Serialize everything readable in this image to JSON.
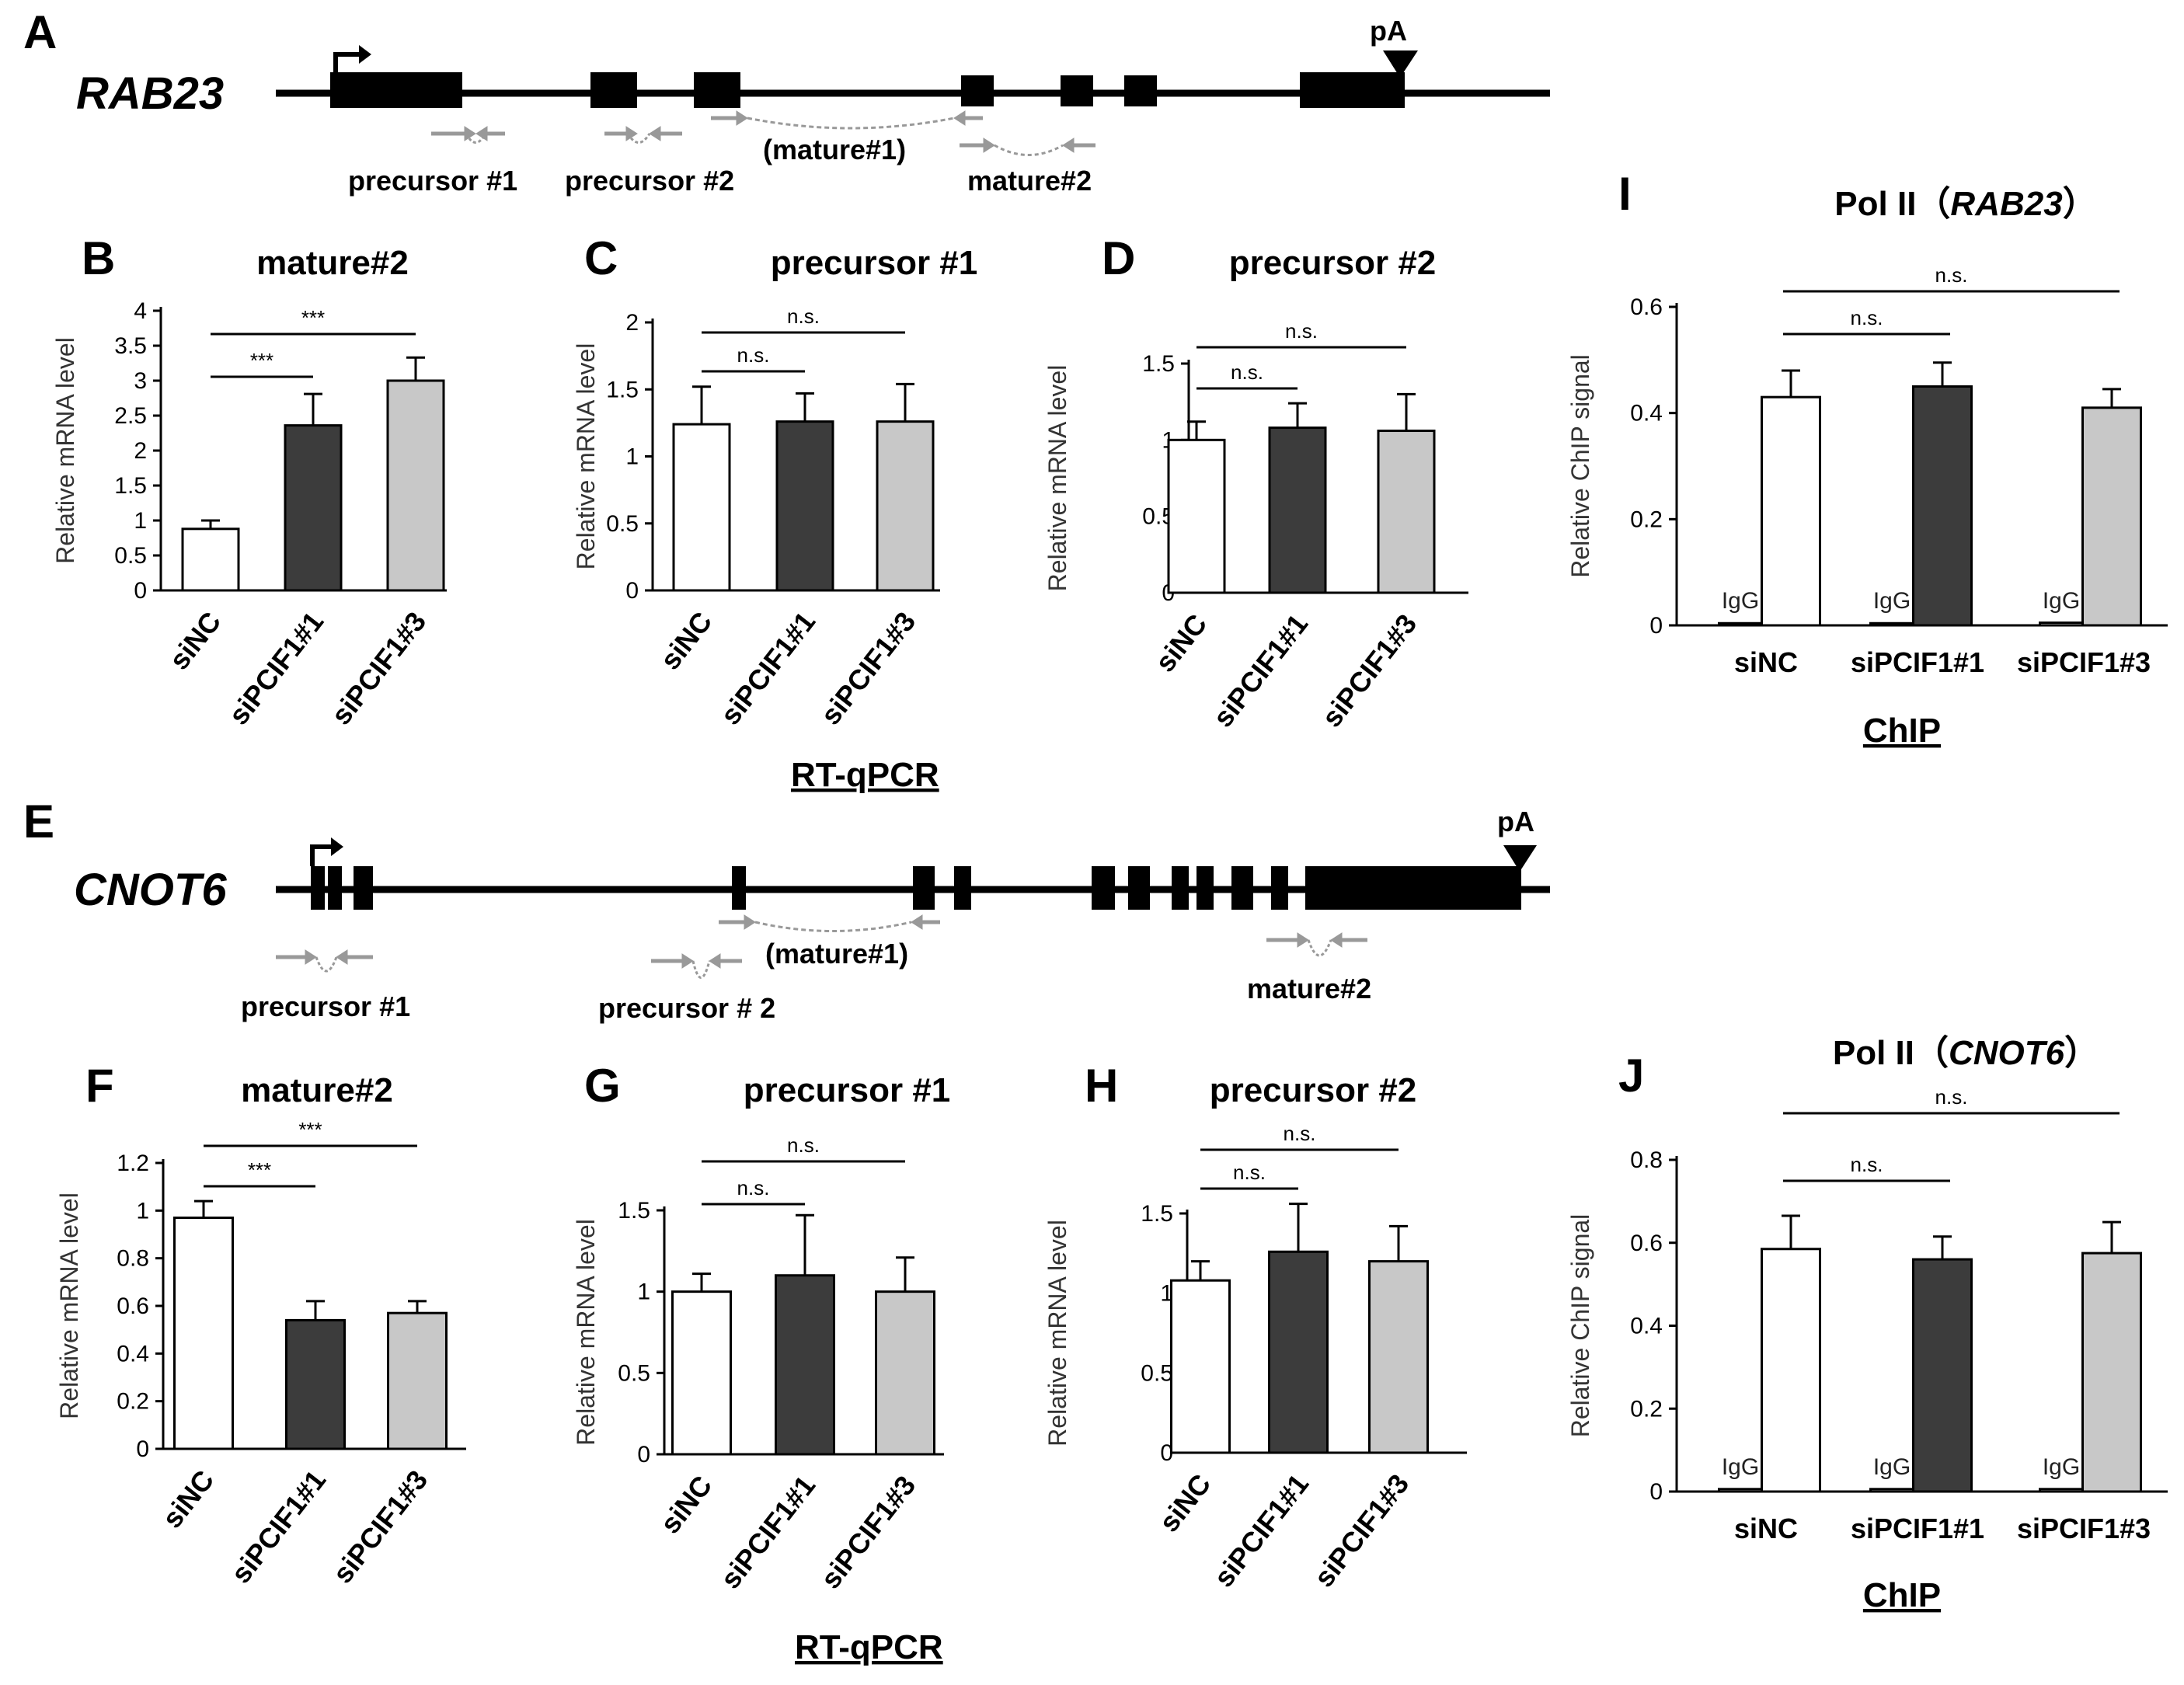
{
  "gene_A": {
    "panel": "A",
    "name": "RAB23",
    "pa": "pA",
    "primers": {
      "p1": "precursor #1",
      "p2": "precursor #2",
      "m1": "(mature#1)",
      "m2": "mature#2"
    }
  },
  "gene_E": {
    "panel": "E",
    "name": "CNOT6",
    "pa": "pA",
    "primers": {
      "p1": "precursor #1",
      "p2": "precursor # 2",
      "m1": "(mature#1)",
      "m2": "mature#2"
    }
  },
  "rtqpcr_label": "RT-qPCR",
  "chip_label": "ChIP",
  "colors": {
    "siNC": "#ffffff",
    "siPCIF1_1": "#3c3c3c",
    "siPCIF1_3": "#c8c8c8"
  },
  "chart_data": [
    {
      "id": "B",
      "panel": "B",
      "type": "bar",
      "title": "mature#2",
      "ylabel": "Relative mRNA level",
      "ylim": [
        0,
        4
      ],
      "ticks": [
        "0",
        "0.5",
        "1",
        "1.5",
        "2",
        "2.5",
        "3",
        "3.5",
        "4"
      ],
      "categories": [
        "siNC",
        "siPCIF1#1",
        "siPCIF1#3"
      ],
      "values": [
        0.88,
        2.36,
        3.0
      ],
      "errors": [
        0.12,
        0.45,
        0.33
      ],
      "significance": [
        {
          "from": 0,
          "to": 1,
          "label": "***"
        },
        {
          "from": 0,
          "to": 2,
          "label": "***"
        }
      ]
    },
    {
      "id": "C",
      "panel": "C",
      "type": "bar",
      "title": "precursor #1",
      "ylabel": "Relative mRNA level",
      "ylim": [
        0,
        2
      ],
      "ticks": [
        "0",
        "0.5",
        "1",
        "1.5",
        "2"
      ],
      "categories": [
        "siNC",
        "siPCIF1#1",
        "siPCIF1#3"
      ],
      "values": [
        1.24,
        1.26,
        1.26
      ],
      "errors": [
        0.28,
        0.21,
        0.28
      ],
      "significance": [
        {
          "from": 0,
          "to": 1,
          "label": "n.s."
        },
        {
          "from": 0,
          "to": 2,
          "label": "n.s."
        }
      ]
    },
    {
      "id": "D",
      "panel": "D",
      "type": "bar",
      "title": "precursor #2",
      "ylabel": "Relative mRNA level",
      "ylim": [
        0,
        1.5
      ],
      "ticks": [
        "0",
        "0.5",
        "1",
        "1.5"
      ],
      "categories": [
        "siNC",
        "siPCIF1#1",
        "siPCIF1#3"
      ],
      "values": [
        1.0,
        1.08,
        1.06
      ],
      "errors": [
        0.12,
        0.16,
        0.24
      ],
      "significance": [
        {
          "from": 0,
          "to": 1,
          "label": "n.s."
        },
        {
          "from": 0,
          "to": 2,
          "label": "n.s."
        }
      ]
    },
    {
      "id": "F",
      "panel": "F",
      "type": "bar",
      "title": "mature#2",
      "ylabel": "Relative mRNA level",
      "ylim": [
        0,
        1.2
      ],
      "ticks": [
        "0",
        "0.2",
        "0.4",
        "0.6",
        "0.8",
        "1",
        "1.2"
      ],
      "categories": [
        "siNC",
        "siPCIF1#1",
        "siPCIF1#3"
      ],
      "values": [
        0.97,
        0.54,
        0.57
      ],
      "errors": [
        0.07,
        0.08,
        0.05
      ],
      "significance": [
        {
          "from": 0,
          "to": 1,
          "label": "***"
        },
        {
          "from": 0,
          "to": 2,
          "label": "***"
        }
      ]
    },
    {
      "id": "G",
      "panel": "G",
      "type": "bar",
      "title": "precursor #1",
      "ylabel": "Relative mRNA level",
      "ylim": [
        0,
        1.5
      ],
      "ticks": [
        "0",
        "0.5",
        "1",
        "1.5"
      ],
      "categories": [
        "siNC",
        "siPCIF1#1",
        "siPCIF1#3"
      ],
      "values": [
        1.0,
        1.1,
        1.0
      ],
      "errors": [
        0.11,
        0.37,
        0.21
      ],
      "significance": [
        {
          "from": 0,
          "to": 1,
          "label": "n.s."
        },
        {
          "from": 0,
          "to": 2,
          "label": "n.s."
        }
      ]
    },
    {
      "id": "H",
      "panel": "H",
      "type": "bar",
      "title": "precursor #2",
      "ylabel": "Relative mRNA level",
      "ylim": [
        0,
        1.5
      ],
      "ticks": [
        "0",
        "0.5",
        "1",
        "1.5"
      ],
      "categories": [
        "siNC",
        "siPCIF1#1",
        "siPCIF1#3"
      ],
      "values": [
        1.08,
        1.26,
        1.2
      ],
      "errors": [
        0.12,
        0.3,
        0.22
      ],
      "significance": [
        {
          "from": 0,
          "to": 1,
          "label": "n.s."
        },
        {
          "from": 0,
          "to": 2,
          "label": "n.s."
        }
      ]
    },
    {
      "id": "I",
      "panel": "I",
      "type": "bar",
      "title": "Pol II (RAB23)",
      "title_prefix": "Pol II（",
      "title_gene": "RAB23",
      "title_suffix": "）",
      "ylabel": "Relative ChIP signal",
      "ylim": [
        0,
        0.6
      ],
      "ticks": [
        "0",
        "0.2",
        "0.4",
        "0.6"
      ],
      "categories": [
        "siNC",
        "siPCIF1#1",
        "siPCIF1#3"
      ],
      "igg_label": "IgG",
      "igg_values": [
        0.004,
        0.004,
        0.005
      ],
      "values": [
        0.43,
        0.45,
        0.41
      ],
      "errors": [
        0.05,
        0.045,
        0.035
      ],
      "significance": [
        {
          "from": 0,
          "to": 1,
          "label": "n.s."
        },
        {
          "from": 0,
          "to": 2,
          "label": "n.s."
        }
      ]
    },
    {
      "id": "J",
      "panel": "J",
      "type": "bar",
      "title": "Pol II (CNOT6)",
      "title_prefix": "Pol II（",
      "title_gene": "CNOT6",
      "title_suffix": "）",
      "ylabel": "Relative ChIP signal",
      "ylim": [
        0,
        0.8
      ],
      "ticks": [
        "0",
        "0.2",
        "0.4",
        "0.6",
        "0.8"
      ],
      "categories": [
        "siNC",
        "siPCIF1#1",
        "siPCIF1#3"
      ],
      "igg_label": "IgG",
      "igg_values": [
        0.006,
        0.006,
        0.006
      ],
      "values": [
        0.585,
        0.56,
        0.575
      ],
      "errors": [
        0.08,
        0.055,
        0.075
      ],
      "significance": [
        {
          "from": 0,
          "to": 1,
          "label": "n.s."
        },
        {
          "from": 0,
          "to": 2,
          "label": "n.s."
        }
      ]
    }
  ]
}
